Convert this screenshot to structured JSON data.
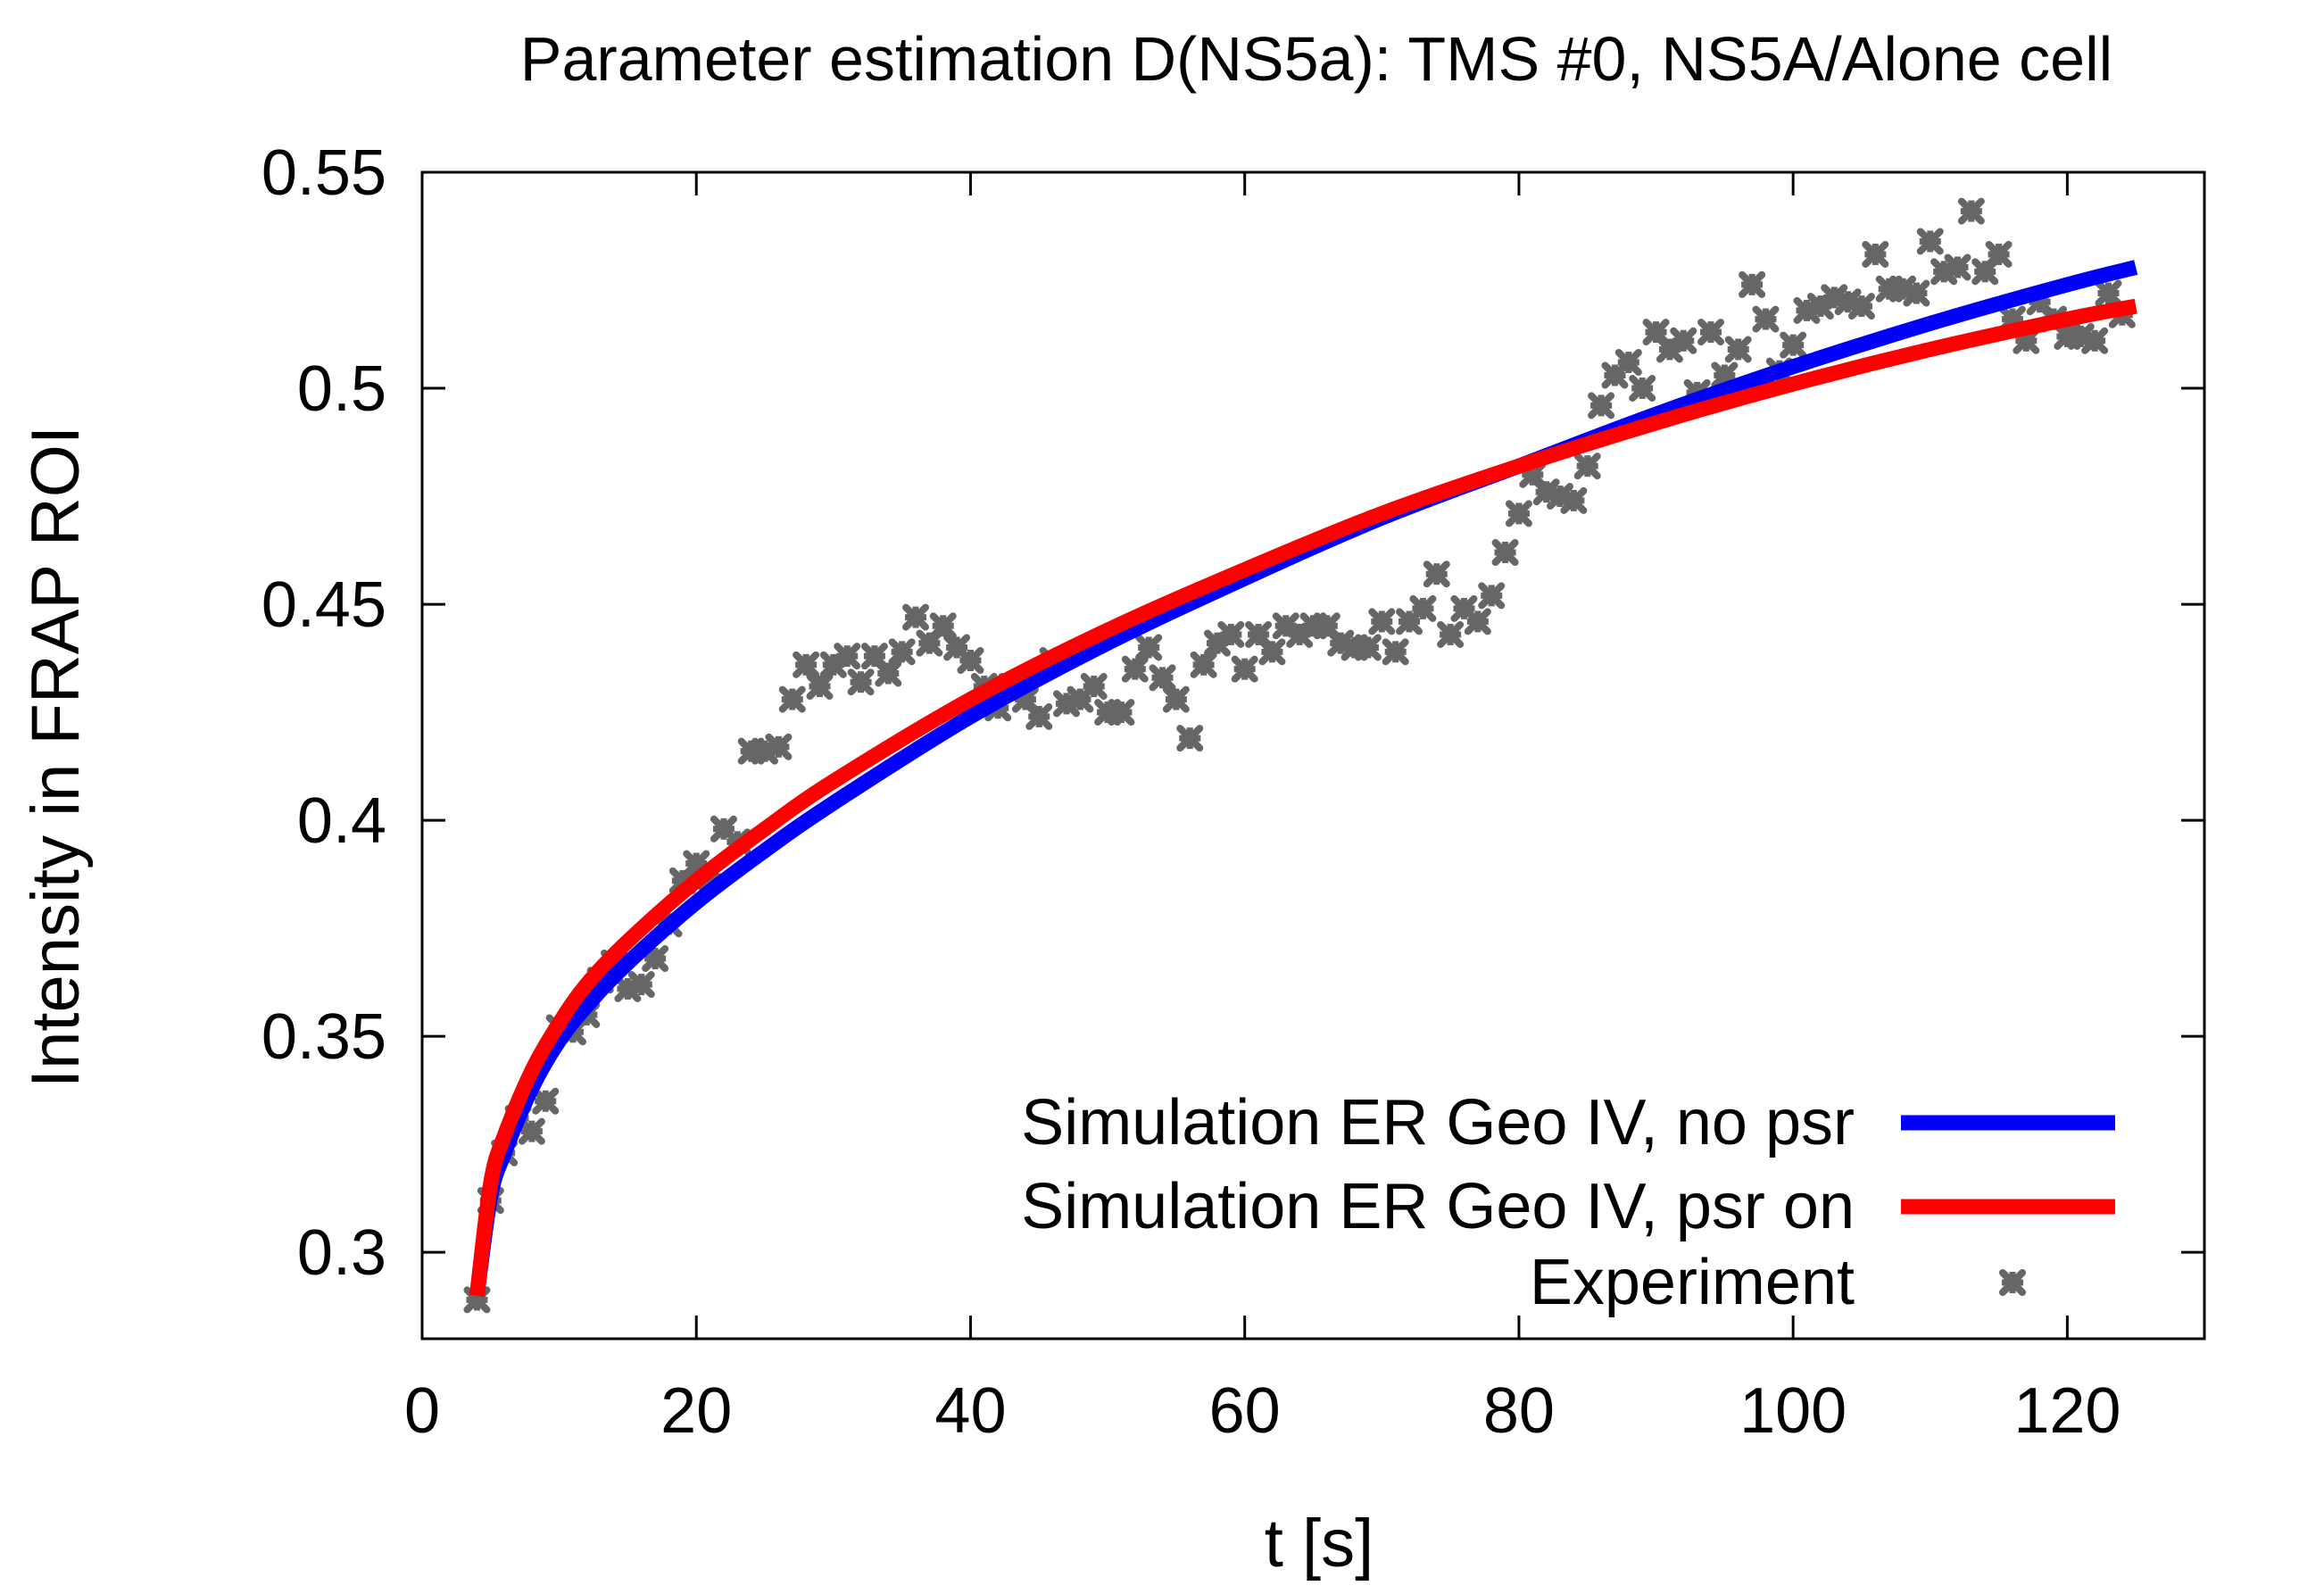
{
  "chart_data": {
    "type": "line",
    "title": "Parameter estimation D(NS5a): TMS #0, NS5A/Alone cell",
    "xlabel": "t [s]",
    "ylabel": "Intensity in FRAP ROI",
    "xlim": [
      0,
      130
    ],
    "ylim": [
      0.28,
      0.55
    ],
    "xticks": [
      0,
      20,
      40,
      60,
      80,
      100,
      120
    ],
    "yticks": [
      0.3,
      0.35,
      0.4,
      0.45,
      0.5,
      0.55
    ],
    "xtick_labels": [
      "0",
      "20",
      "40",
      "60",
      "80",
      "100",
      "120"
    ],
    "ytick_labels": [
      "0.3",
      "0.35",
      "0.4",
      "0.45",
      "0.5",
      "0.55"
    ],
    "legend_position": "bottom-right",
    "series": [
      {
        "name": "Simulation ER Geo IV, no psr",
        "kind": "line",
        "color": "#0000ff",
        "x": [
          4,
          5,
          6,
          8,
          10,
          12,
          15,
          20,
          25,
          30,
          40,
          50,
          60,
          70,
          80,
          90,
          100,
          110,
          120,
          125
        ],
        "y": [
          0.29,
          0.313,
          0.323,
          0.338,
          0.349,
          0.357,
          0.367,
          0.381,
          0.393,
          0.404,
          0.424,
          0.441,
          0.456,
          0.47,
          0.482,
          0.494,
          0.505,
          0.515,
          0.524,
          0.528
        ]
      },
      {
        "name": "Simulation ER Geo IV, psr on",
        "kind": "line",
        "color": "#ff0000",
        "x": [
          4,
          5,
          6,
          8,
          10,
          12,
          15,
          20,
          25,
          30,
          40,
          50,
          60,
          70,
          80,
          90,
          100,
          110,
          120,
          125
        ],
        "y": [
          0.29,
          0.316,
          0.327,
          0.342,
          0.353,
          0.362,
          0.372,
          0.386,
          0.398,
          0.409,
          0.428,
          0.444,
          0.458,
          0.471,
          0.482,
          0.492,
          0.501,
          0.509,
          0.516,
          0.519
        ]
      },
      {
        "name": "Experiment",
        "kind": "scatter",
        "color": "#666666",
        "x": [
          4,
          5,
          6,
          7,
          8,
          9,
          10,
          11,
          12,
          13,
          14,
          15,
          16,
          17,
          18,
          19,
          20,
          21,
          22,
          23,
          24,
          25,
          26,
          27,
          28,
          29,
          30,
          31,
          32,
          33,
          34,
          35,
          36,
          37,
          38,
          39,
          40,
          41,
          42,
          43,
          44,
          45,
          46,
          47,
          48,
          49,
          50,
          51,
          52,
          53,
          54,
          55,
          56,
          57,
          58,
          59,
          60,
          61,
          62,
          63,
          64,
          65,
          66,
          67,
          68,
          69,
          70,
          71,
          72,
          73,
          74,
          75,
          76,
          77,
          78,
          79,
          80,
          81,
          82,
          83,
          84,
          85,
          86,
          87,
          88,
          89,
          90,
          91,
          92,
          93,
          94,
          95,
          96,
          97,
          98,
          99,
          100,
          101,
          102,
          103,
          104,
          105,
          106,
          107,
          108,
          109,
          110,
          111,
          112,
          113,
          114,
          115,
          116,
          117,
          118,
          119,
          120,
          121,
          122,
          123,
          124
        ],
        "y": [
          0.289,
          0.312,
          0.323,
          0.331,
          0.328,
          0.335,
          0.352,
          0.351,
          0.355,
          0.363,
          0.367,
          0.361,
          0.362,
          0.368,
          0.376,
          0.386,
          0.39,
          0.387,
          0.398,
          0.395,
          0.416,
          0.416,
          0.417,
          0.428,
          0.436,
          0.431,
          0.436,
          0.438,
          0.432,
          0.438,
          0.434,
          0.439,
          0.447,
          0.441,
          0.445,
          0.44,
          0.437,
          0.431,
          0.426,
          0.431,
          0.428,
          0.424,
          0.437,
          0.427,
          0.428,
          0.431,
          0.425,
          0.425,
          0.435,
          0.44,
          0.433,
          0.428,
          0.419,
          0.436,
          0.441,
          0.443,
          0.435,
          0.443,
          0.439,
          0.445,
          0.443,
          0.445,
          0.445,
          0.441,
          0.44,
          0.44,
          0.446,
          0.439,
          0.446,
          0.449,
          0.457,
          0.443,
          0.449,
          0.446,
          0.452,
          0.462,
          0.471,
          0.48,
          0.476,
          0.475,
          0.474,
          0.482,
          0.496,
          0.503,
          0.506,
          0.5,
          0.513,
          0.509,
          0.511,
          0.499,
          0.513,
          0.503,
          0.509,
          0.524,
          0.516,
          0.504,
          0.51,
          0.518,
          0.519,
          0.521,
          0.52,
          0.519,
          0.531,
          0.523,
          0.523,
          0.522,
          0.534,
          0.527,
          0.528,
          0.541,
          0.527,
          0.531,
          0.516,
          0.511,
          0.52,
          0.516,
          0.512,
          0.512,
          0.511,
          0.522,
          0.517
        ]
      }
    ]
  }
}
